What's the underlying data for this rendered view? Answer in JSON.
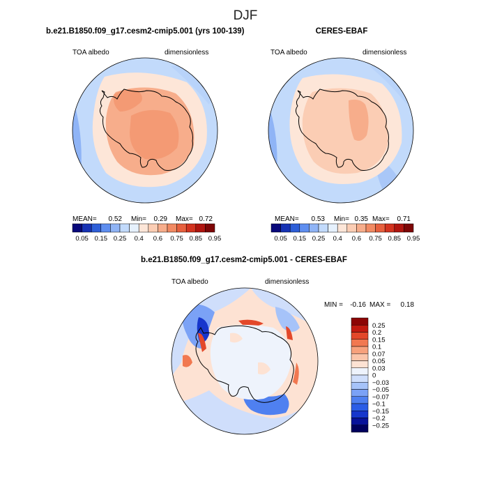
{
  "page": {
    "title": "DJF",
    "colors": {
      "background": "#ffffff",
      "coastline": "#000000"
    }
  },
  "panels": [
    {
      "id": "model",
      "title": "b.e21.B1850.f09_g17.cesm2-cmip5.001 (yrs 100-139)",
      "variable_label": "TOA albedo",
      "units_label": "dimensionless",
      "stats": {
        "mean_label": "MEAN=",
        "mean_value": "0.52",
        "min_label": "Min=",
        "min_value": "0.29",
        "max_label": "Max=",
        "max_value": "0.72"
      },
      "colorbar": {
        "orientation": "horizontal",
        "tick_labels": [
          "0.05",
          "0.15",
          "0.25",
          "0.4",
          "0.6",
          "0.75",
          "0.85",
          "0.95"
        ]
      }
    },
    {
      "id": "obs",
      "title": "CERES-EBAF",
      "variable_label": "TOA albedo",
      "units_label": "dimensionless",
      "stats": {
        "mean_label": "MEAN=",
        "mean_value": "0.53",
        "min_label": "Min=",
        "min_value": "0.35",
        "max_label": "Max=",
        "max_value": "0.71"
      },
      "colorbar": {
        "orientation": "horizontal",
        "tick_labels": [
          "0.05",
          "0.15",
          "0.25",
          "0.4",
          "0.6",
          "0.75",
          "0.85",
          "0.95"
        ]
      }
    },
    {
      "id": "diff",
      "title": "b.e21.B1850.f09_g17.cesm2-cmip5.001 - CERES-EBAF",
      "variable_label": "TOA albedo",
      "units_label": "dimensionless",
      "stats": {
        "min_label": "MIN =",
        "min_value": "-0.16",
        "max_label": "MAX =",
        "max_value": "0.18"
      },
      "colorbar": {
        "orientation": "vertical",
        "tick_labels": [
          "0.25",
          "0.2",
          "0.15",
          "0.1",
          "0.07",
          "0.05",
          "0.03",
          "0",
          "−0.03",
          "−0.05",
          "−0.07",
          "−0.1",
          "−0.15",
          "−0.2",
          "−0.25"
        ]
      }
    }
  ],
  "colormaps": {
    "albedo": [
      "#08087a",
      "#1732b4",
      "#2e5fd8",
      "#5e8ef0",
      "#8fb4f6",
      "#c2dafb",
      "#e6f1fd",
      "#fde6d8",
      "#fbcdb4",
      "#f7ad8b",
      "#f28a63",
      "#e7603e",
      "#d3331f",
      "#b0150f",
      "#7d0606"
    ],
    "difference": [
      "#00005e",
      "#08129a",
      "#1636cc",
      "#2b5de6",
      "#4f80f0",
      "#7ba2f6",
      "#a6c3f9",
      "#cfdefb",
      "#eef3fc",
      "#fde2d3",
      "#fbc5aa",
      "#f7a17c",
      "#f17850",
      "#e3482a",
      "#c21a10",
      "#8c0505"
    ]
  }
}
